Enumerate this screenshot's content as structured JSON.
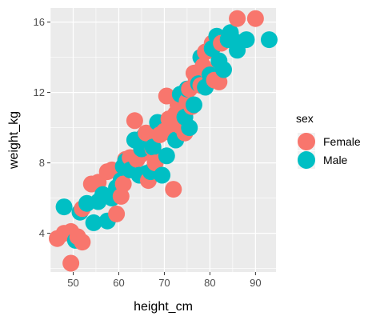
{
  "chart_data": {
    "type": "scatter",
    "title": "",
    "xlabel": "height_cm",
    "ylabel": "weight_kg",
    "xlim": [
      45,
      94.5
    ],
    "ylim": [
      1.8,
      16.8
    ],
    "xticks": [
      50,
      60,
      70,
      80,
      90
    ],
    "yticks": [
      4,
      8,
      12,
      16
    ],
    "grid": true,
    "background": "#ebebeb",
    "grid_color": "#ffffff",
    "legend": {
      "title": "sex",
      "position": "right"
    },
    "series": [
      {
        "name": "Female",
        "color": "#f8766d",
        "points": [
          [
            46.5,
            3.7
          ],
          [
            48,
            4.0
          ],
          [
            49.5,
            4.1
          ],
          [
            49.5,
            2.3
          ],
          [
            51,
            3.8
          ],
          [
            52,
            3.5
          ],
          [
            52,
            5.4
          ],
          [
            54,
            6.8
          ],
          [
            55.5,
            6.9
          ],
          [
            57.5,
            7.5
          ],
          [
            58.5,
            7.6
          ],
          [
            59.5,
            5.1
          ],
          [
            60.5,
            6.1
          ],
          [
            61,
            6.8
          ],
          [
            61.5,
            8.2
          ],
          [
            62.5,
            8.3
          ],
          [
            63.5,
            10.4
          ],
          [
            64,
            8.2
          ],
          [
            65,
            8.5
          ],
          [
            66,
            9.7
          ],
          [
            66.5,
            7.0
          ],
          [
            67.5,
            8.8
          ],
          [
            68,
            8.0
          ],
          [
            69,
            9.6
          ],
          [
            70,
            9.8
          ],
          [
            70.5,
            11.8
          ],
          [
            71,
            10.5
          ],
          [
            71.5,
            9.7
          ],
          [
            72,
            6.5
          ],
          [
            72.5,
            10.8
          ],
          [
            73,
            11.3
          ],
          [
            73.5,
            10.1
          ],
          [
            74,
            11.0
          ],
          [
            74.5,
            9.7
          ],
          [
            75,
            11.5
          ],
          [
            75.5,
            12.2
          ],
          [
            76,
            11.2
          ],
          [
            76.5,
            13.1
          ],
          [
            77,
            12.7
          ],
          [
            78,
            12.4
          ],
          [
            78.5,
            13.5
          ],
          [
            79,
            14.3
          ],
          [
            79.5,
            13.2
          ],
          [
            80,
            14.4
          ],
          [
            80.5,
            14.8
          ],
          [
            81,
            12.7
          ],
          [
            82,
            12.6
          ],
          [
            82.5,
            14.8
          ],
          [
            86,
            16.2
          ],
          [
            90,
            16.2
          ]
        ]
      },
      {
        "name": "Male",
        "color": "#00bfc4",
        "points": [
          [
            48,
            5.5
          ],
          [
            50.5,
            3.6
          ],
          [
            51.5,
            5.2
          ],
          [
            53,
            5.7
          ],
          [
            54.5,
            4.6
          ],
          [
            55.5,
            5.8
          ],
          [
            56.5,
            6.2
          ],
          [
            57.5,
            4.7
          ],
          [
            58.5,
            6.0
          ],
          [
            59.5,
            6.6
          ],
          [
            60.5,
            7.0
          ],
          [
            61,
            7.8
          ],
          [
            61.5,
            8.1
          ],
          [
            62.5,
            7.6
          ],
          [
            63.5,
            9.3
          ],
          [
            64.5,
            7.3
          ],
          [
            65,
            8.8
          ],
          [
            65.5,
            9.5
          ],
          [
            66,
            7.4
          ],
          [
            67,
            7.5
          ],
          [
            67.5,
            8.9
          ],
          [
            68.5,
            10.3
          ],
          [
            69.5,
            7.3
          ],
          [
            70.5,
            8.4
          ],
          [
            72.5,
            9.3
          ],
          [
            73.5,
            11.9
          ],
          [
            74.5,
            10.6
          ],
          [
            75,
            12.2
          ],
          [
            75.5,
            10.0
          ],
          [
            76.5,
            11.3
          ],
          [
            77.5,
            12.5
          ],
          [
            78,
            14.0
          ],
          [
            79,
            12.3
          ],
          [
            80,
            13.0
          ],
          [
            80.5,
            14.5
          ],
          [
            81.5,
            15.2
          ],
          [
            82,
            13.8
          ],
          [
            83,
            13.3
          ],
          [
            84,
            15.0
          ],
          [
            84.5,
            15.4
          ],
          [
            85.5,
            14.9
          ],
          [
            86,
            14.4
          ],
          [
            88,
            15.0
          ],
          [
            93,
            15.0
          ]
        ]
      }
    ]
  }
}
